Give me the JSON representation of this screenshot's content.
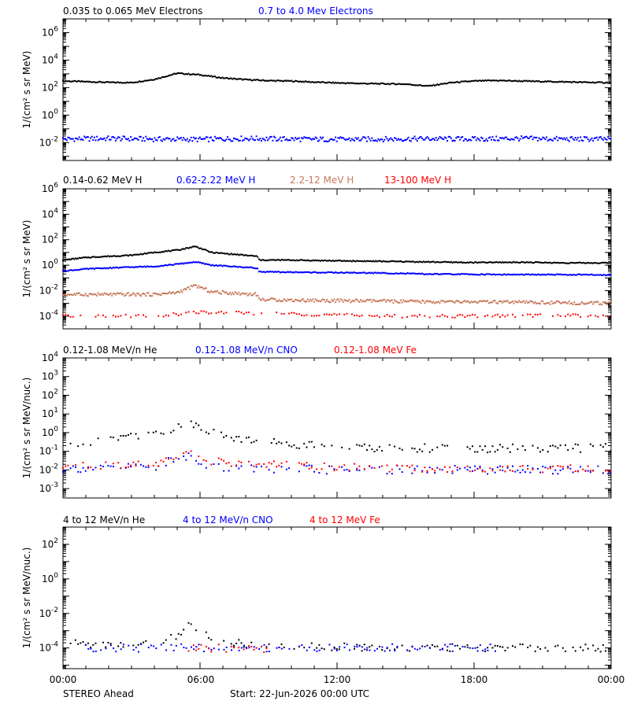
{
  "footer": {
    "spacecraft": "STEREO Ahead",
    "start": "Start: 22-Jun-2026 00:00 UTC"
  },
  "x_ticks": [
    "00:00",
    "06:00",
    "12:00",
    "18:00",
    "00:00"
  ],
  "colors": {
    "black": "#000000",
    "blue": "#0000ff",
    "tan": "#c8785a",
    "red": "#ff0000"
  },
  "chart_data": [
    {
      "type": "scatter",
      "ylabel": "1/(cm² s sr MeV)",
      "ylog": true,
      "ylim_exp": [
        -3.3,
        7
      ],
      "yticks_exp": [
        -2,
        0,
        2,
        4,
        6
      ],
      "xlim_hours": [
        0,
        24
      ],
      "series": [
        {
          "name": "0.035 to 0.065 MeV Electrons",
          "color": "#000000",
          "x": [
            0,
            1,
            2,
            3,
            4,
            5,
            6,
            7,
            8,
            9,
            10,
            11,
            12,
            13,
            14,
            15,
            16,
            17,
            18,
            19,
            20,
            21,
            22,
            23,
            24
          ],
          "y": [
            300,
            270,
            240,
            230,
            400,
            1100,
            850,
            500,
            380,
            320,
            300,
            250,
            220,
            200,
            190,
            180,
            130,
            230,
            300,
            330,
            300,
            280,
            260,
            240,
            230
          ]
        },
        {
          "name": "0.7 to 4.0 Mev Electrons",
          "color": "#0000ff",
          "x": [
            0,
            2,
            4,
            6,
            8,
            10,
            12,
            14,
            16,
            18,
            20,
            22,
            24
          ],
          "y": [
            0.018,
            0.02,
            0.018,
            0.017,
            0.02,
            0.018,
            0.017,
            0.018,
            0.019,
            0.018,
            0.02,
            0.018,
            0.018
          ]
        }
      ]
    },
    {
      "type": "scatter",
      "ylabel": "1/(cm² s sr MeV)",
      "ylog": true,
      "ylim_exp": [
        -5,
        6
      ],
      "yticks_exp": [
        -4,
        -2,
        0,
        2,
        4,
        6
      ],
      "xlim_hours": [
        0,
        24
      ],
      "series": [
        {
          "name": "0.14-0.62 MeV H",
          "color": "#000000",
          "x": [
            0,
            1,
            2,
            3,
            4,
            5,
            5.8,
            6.5,
            8.5,
            8.6,
            10,
            12,
            14,
            16,
            18,
            20,
            22,
            24
          ],
          "y": [
            2.5,
            4,
            5,
            6,
            10,
            15,
            30,
            10,
            5,
            2.5,
            2.5,
            2.2,
            2,
            1.8,
            1.6,
            1.7,
            1.5,
            1.5
          ]
        },
        {
          "name": "0.62-2.22 MeV H",
          "color": "#0000ff",
          "x": [
            0,
            1,
            2,
            3,
            4,
            5,
            5.8,
            6.5,
            8.5,
            8.6,
            10,
            12,
            14,
            16,
            18,
            20,
            22,
            24
          ],
          "y": [
            0.35,
            0.5,
            0.6,
            0.7,
            0.8,
            1.2,
            1.8,
            1.0,
            0.6,
            0.3,
            0.28,
            0.26,
            0.24,
            0.2,
            0.19,
            0.18,
            0.18,
            0.17
          ]
        },
        {
          "name": "2.2-12 MeV H",
          "color": "#c8785a",
          "x": [
            0,
            2,
            4,
            5,
            5.8,
            6.5,
            8.5,
            8.6,
            10,
            12,
            14,
            16,
            18,
            20,
            22,
            24
          ],
          "y": [
            0.005,
            0.005,
            0.005,
            0.007,
            0.025,
            0.008,
            0.005,
            0.002,
            0.0018,
            0.0016,
            0.0015,
            0.0013,
            0.0013,
            0.0012,
            0.0011,
            0.001
          ]
        },
        {
          "name": "13-100 MeV H",
          "color": "#ff0000",
          "x": [
            0,
            4,
            6,
            10,
            14,
            18,
            22,
            24
          ],
          "y": [
            0.0001,
            0.0001,
            0.0002,
            0.00015,
            0.0001,
            0.0001,
            0.00012,
            0.0001
          ]
        }
      ]
    },
    {
      "type": "scatter",
      "ylabel": "1/(cm² s sr MeV/nuc.)",
      "ylog": true,
      "ylim_exp": [
        -3.5,
        4
      ],
      "yticks_exp": [
        -3,
        -2,
        -1,
        0,
        1,
        2,
        3,
        4
      ],
      "xlim_hours": [
        0,
        24
      ],
      "series": [
        {
          "name": "0.12-1.08 MeV/n He",
          "color": "#000000",
          "x": [
            0,
            2,
            4,
            5,
            5.8,
            6.5,
            8,
            10,
            12,
            14,
            16,
            18,
            20,
            22,
            24
          ],
          "y": [
            0.2,
            0.5,
            1.0,
            2.0,
            3.0,
            1.0,
            0.4,
            0.25,
            0.2,
            0.15,
            0.15,
            0.12,
            0.15,
            0.15,
            0.15
          ]
        },
        {
          "name": "0.12-1.08 MeV/n CNO",
          "color": "#0000ff",
          "x": [
            0,
            4,
            5.5,
            6.5,
            8,
            12,
            16,
            20,
            24
          ],
          "y": [
            0.012,
            0.015,
            0.06,
            0.015,
            0.012,
            0.01,
            0.01,
            0.01,
            0.01
          ]
        },
        {
          "name": "0.12-1.08 MeV Fe",
          "color": "#ff0000",
          "x": [
            0,
            4,
            5.5,
            6.5,
            8,
            12,
            16,
            20,
            24
          ],
          "y": [
            0.015,
            0.02,
            0.12,
            0.03,
            0.02,
            0.015,
            0.012,
            0.012,
            0.012
          ]
        }
      ]
    },
    {
      "type": "scatter",
      "ylabel": "1/(cm² s sr MeV/nuc.)",
      "ylog": true,
      "ylim_exp": [
        -5.2,
        3
      ],
      "yticks_exp": [
        -4,
        -2,
        0,
        2
      ],
      "xlim_hours": [
        0,
        24
      ],
      "series": [
        {
          "name": "4 to 12 MeV/n He",
          "color": "#000000",
          "x": [
            0,
            2,
            4,
            5,
            5.5,
            6,
            7,
            8,
            10,
            12,
            14,
            16,
            18,
            20,
            22,
            24
          ],
          "y": [
            0.0002,
            0.00015,
            0.0002,
            0.0005,
            0.002,
            0.0008,
            0.0003,
            0.00015,
            0.00012,
            0.00012,
            0.0001,
            0.0001,
            0.0001,
            0.0001,
            0.0001,
            0.0001
          ]
        },
        {
          "name": "4 to 12 MeV/n CNO",
          "color": "#0000ff",
          "x": [
            1,
            3,
            7,
            10,
            15,
            19
          ],
          "y": [
            0.0001,
            0.0001,
            0.0001,
            0.0001,
            0.0001,
            0.0001
          ]
        },
        {
          "name": "4 to 12 MeV Fe",
          "color": "#ff0000",
          "x": [
            5.5,
            6,
            9
          ],
          "y": [
            8e-05,
            0.0001,
            9e-05
          ]
        }
      ]
    }
  ]
}
